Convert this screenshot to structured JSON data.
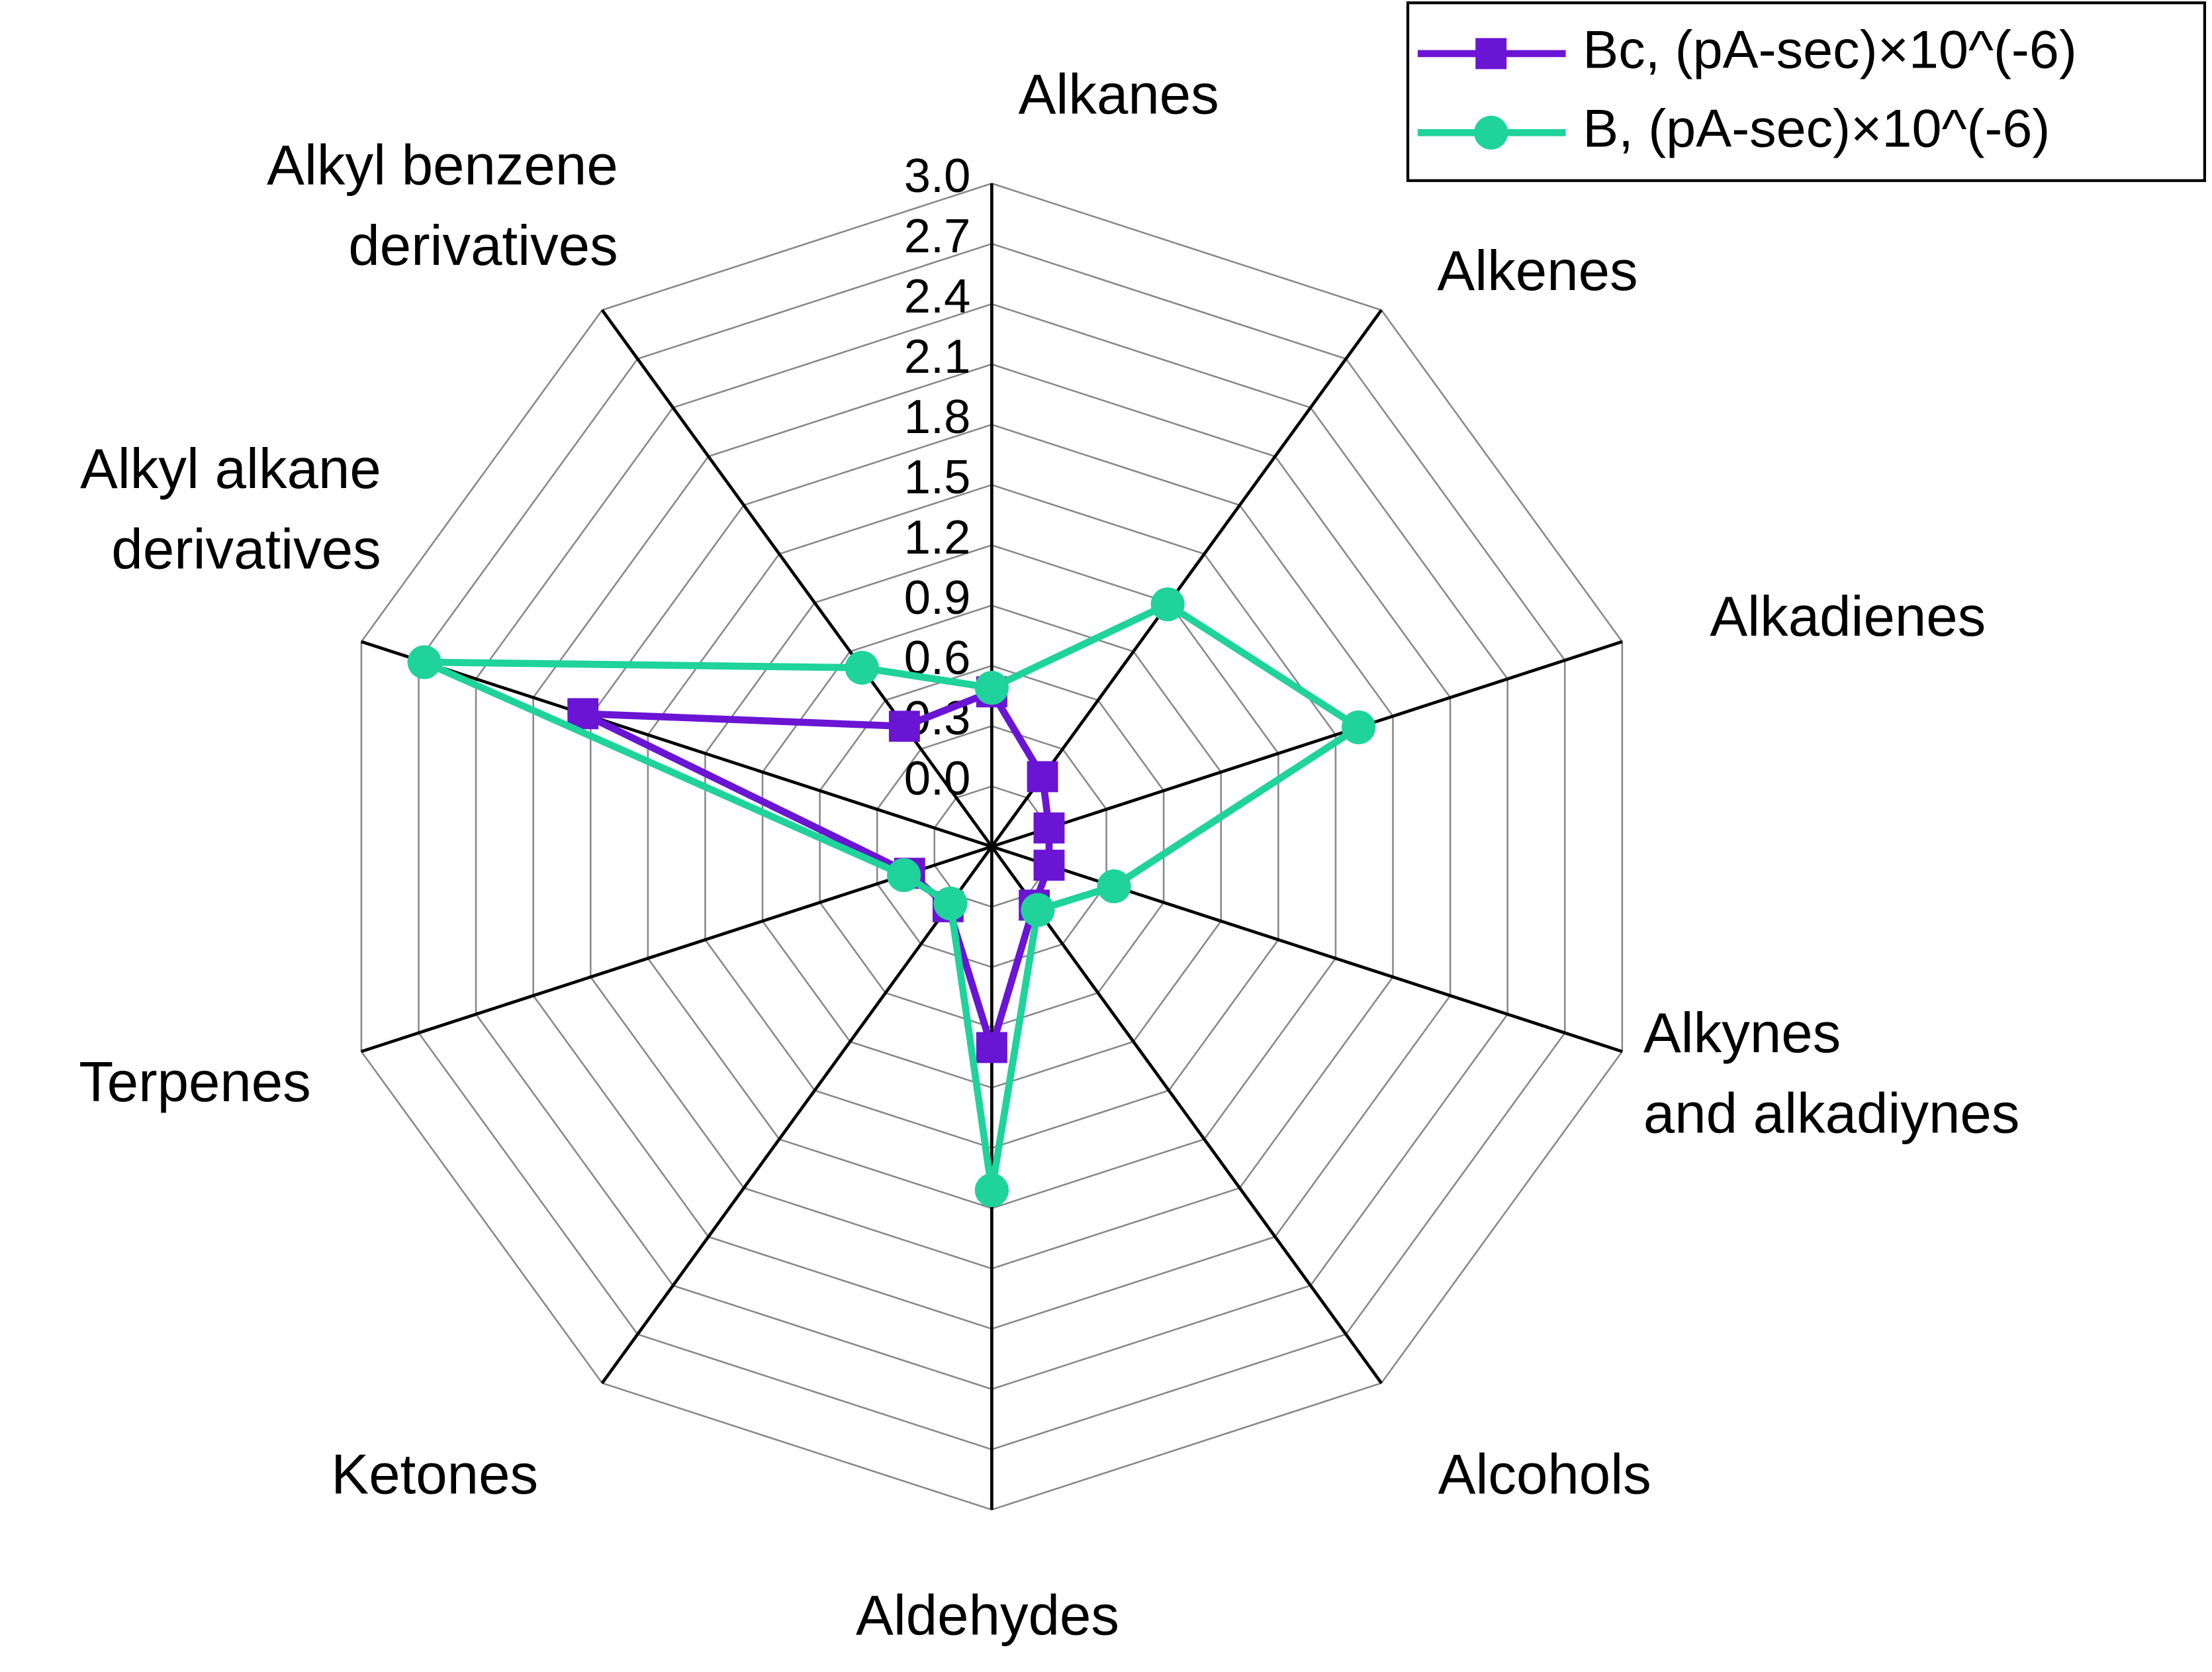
{
  "chart_data": {
    "type": "radar",
    "categories": [
      "Alkanes",
      "Alkenes",
      "Alkadienes",
      "Alkynes\nand alkadiynes",
      "Alcohols",
      "Aldehydes",
      "Ketones",
      "Terpenes",
      "Alkyl alkane\nderivatives",
      "Alkyl benzene\nderivatives"
    ],
    "ylim": [
      -0.3,
      3.0
    ],
    "yticks": [
      {
        "value": 0,
        "label": "0.0"
      },
      0.3,
      0.6,
      0.9,
      1.2,
      1.5,
      1.8,
      2.1,
      2.4,
      2.7,
      {
        "value": 3,
        "label": "3.0"
      }
    ],
    "grid": true,
    "legend": "top-right",
    "series": [
      {
        "name": "Bc, (pA-sec)×10^(-6)",
        "color": "#6a14d4",
        "marker": "square",
        "values": [
          0.47,
          0.13,
          0.0,
          0.0,
          0.06,
          0.7,
          0.07,
          0.13,
          1.84,
          0.44
        ]
      },
      {
        "name": "B, (pA-sec)×10^(-6)",
        "color": "#1fd39a",
        "marker": "circle",
        "values": [
          0.49,
          1.19,
          1.62,
          0.34,
          0.09,
          1.41,
          0.05,
          0.16,
          2.67,
          0.8
        ]
      }
    ]
  }
}
